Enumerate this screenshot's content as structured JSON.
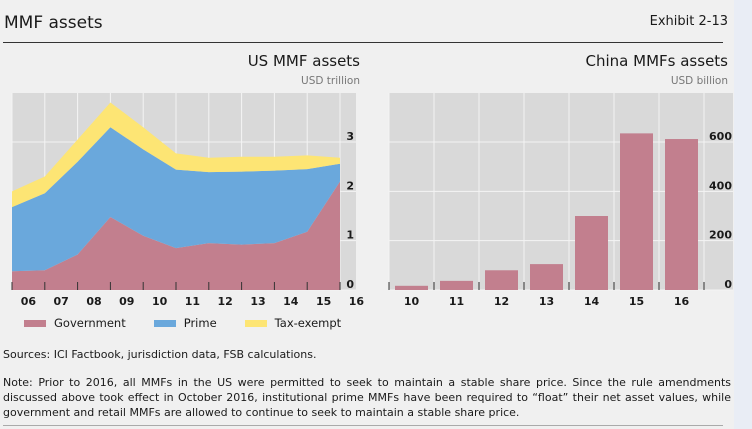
{
  "header": {
    "title": "MMF assets",
    "exhibit": "Exhibit 2-13"
  },
  "chart_data": [
    {
      "type": "area",
      "stacked": true,
      "title": "US MMF assets",
      "unit": "USD trillion",
      "categories": [
        "06",
        "07",
        "08",
        "09",
        "10",
        "11",
        "12",
        "13",
        "14",
        "15",
        "16"
      ],
      "series": [
        {
          "name": "Government",
          "color": "#c27f8e",
          "values": [
            0.38,
            0.4,
            0.72,
            1.48,
            1.1,
            0.85,
            0.95,
            0.92,
            0.95,
            1.18,
            2.2
          ]
        },
        {
          "name": "Prime",
          "color": "#6aa8dc",
          "values": [
            1.3,
            1.56,
            1.88,
            1.82,
            1.75,
            1.59,
            1.44,
            1.48,
            1.47,
            1.27,
            0.36
          ]
        },
        {
          "name": "Tax-exempt",
          "color": "#fde574",
          "values": [
            0.32,
            0.34,
            0.45,
            0.5,
            0.45,
            0.33,
            0.29,
            0.3,
            0.28,
            0.28,
            0.12
          ]
        }
      ],
      "yticks": [
        "0",
        "1",
        "2",
        "3"
      ],
      "ylim": [
        0,
        4
      ],
      "grid": true,
      "y_axis_side": "right",
      "legend_position": "bottom"
    },
    {
      "type": "bar",
      "title": "China MMFs assets",
      "unit": "USD billion",
      "categories": [
        "10",
        "11",
        "12",
        "13",
        "14",
        "15",
        "16"
      ],
      "values": [
        17,
        37,
        80,
        105,
        300,
        635,
        612
      ],
      "color": "#c27f8e",
      "yticks": [
        "0",
        "200",
        "400",
        "600"
      ],
      "ylim": [
        0,
        800
      ],
      "grid": true,
      "y_axis_side": "right"
    }
  ],
  "footer": {
    "sources": "Sources: ICI Factbook, jurisdiction data, FSB calculations.",
    "note": "Note: Prior to 2016, all MMFs in the US were permitted to seek to maintain a stable share price. Since the rule amendments discussed above took effect in October 2016, institutional prime MMFs have been required to “float” their net asset values, while government and retail MMFs are allowed to continue to seek to maintain a stable share price."
  }
}
